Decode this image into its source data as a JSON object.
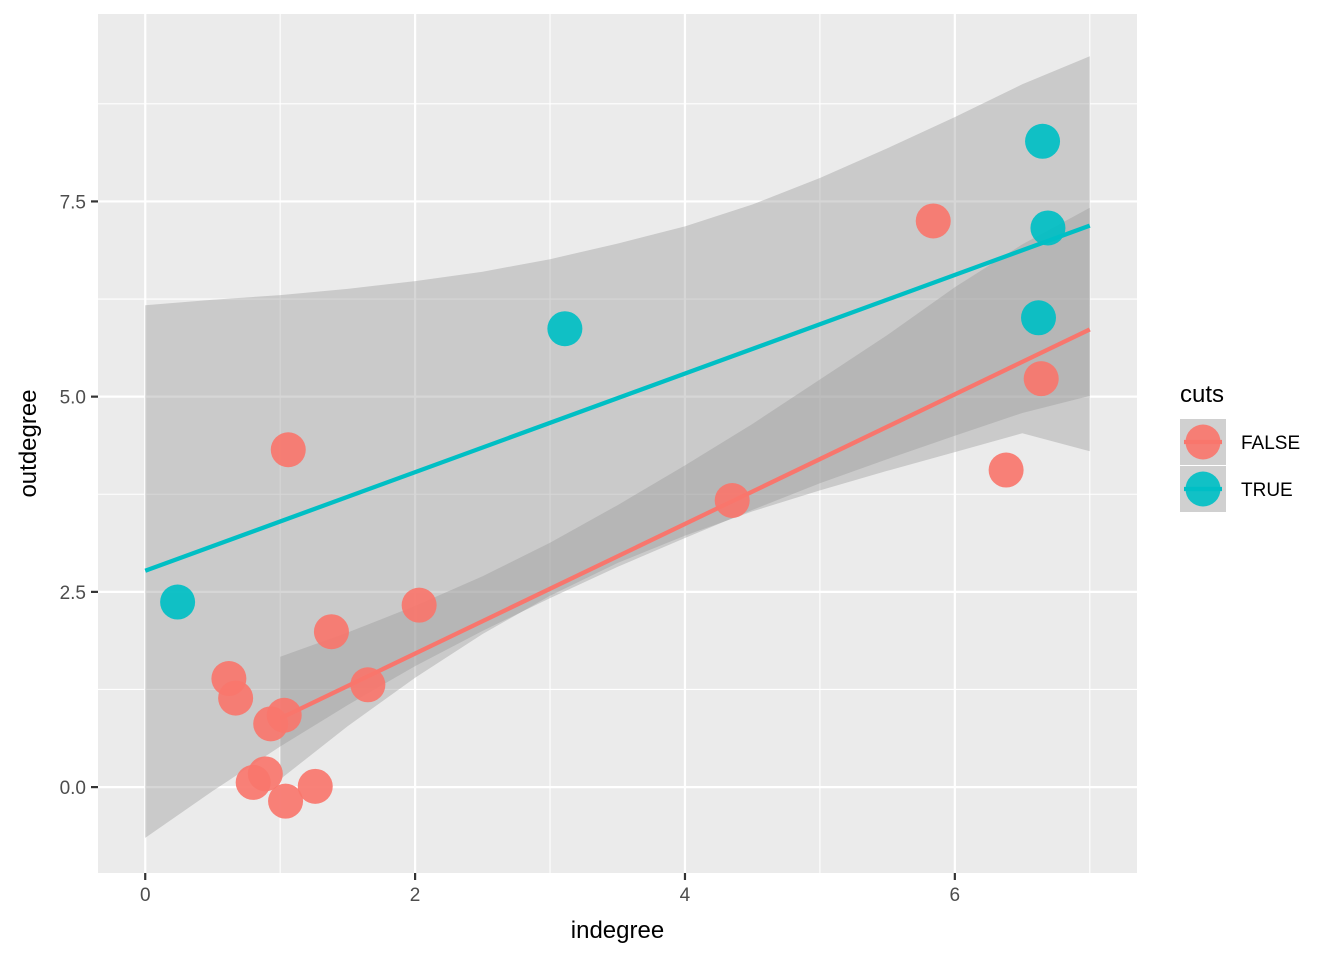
{
  "chart_data": {
    "type": "scatter",
    "xlabel": "indegree",
    "ylabel": "outdegree",
    "xlim": [
      -0.35,
      7.35
    ],
    "ylim": [
      -1.1,
      9.9
    ],
    "x_ticks": [
      {
        "value": 0,
        "label": "0"
      },
      {
        "value": 2,
        "label": "2"
      },
      {
        "value": 4,
        "label": "4"
      },
      {
        "value": 6,
        "label": "6"
      }
    ],
    "y_ticks": [
      {
        "value": 0,
        "label": "0.0"
      },
      {
        "value": 2.5,
        "label": "2.5"
      },
      {
        "value": 5,
        "label": "5.0"
      },
      {
        "value": 7.5,
        "label": "7.5"
      }
    ],
    "grid": true,
    "legend": {
      "title": "cuts",
      "placement": "right",
      "entries": [
        "FALSE",
        "TRUE"
      ]
    },
    "series": [
      {
        "name": "FALSE",
        "color": "#F8766D",
        "points": [
          {
            "x": 0.62,
            "y": 1.39
          },
          {
            "x": 0.67,
            "y": 1.14
          },
          {
            "x": 0.93,
            "y": 0.81
          },
          {
            "x": 1.03,
            "y": 0.92
          },
          {
            "x": 1.06,
            "y": 4.32
          },
          {
            "x": 1.38,
            "y": 1.99
          },
          {
            "x": 1.65,
            "y": 1.31
          },
          {
            "x": 2.03,
            "y": 2.33
          },
          {
            "x": 0.89,
            "y": 0.17
          },
          {
            "x": 0.8,
            "y": 0.06
          },
          {
            "x": 1.04,
            "y": -0.18
          },
          {
            "x": 1.26,
            "y": 0.01
          },
          {
            "x": 4.35,
            "y": 3.67
          },
          {
            "x": 5.84,
            "y": 7.25
          },
          {
            "x": 6.38,
            "y": 4.06
          },
          {
            "x": 6.64,
            "y": 5.23
          }
        ],
        "fit": {
          "x": [
            1.0,
            7.0
          ],
          "y": [
            0.88,
            5.86
          ]
        },
        "band": {
          "x": [
            1.0,
            1.5,
            2.0,
            2.5,
            3.0,
            3.5,
            4.0,
            4.5,
            5.0,
            5.5,
            6.0,
            6.5,
            7.0
          ],
          "lower": [
            0.1,
            0.78,
            1.4,
            1.96,
            2.45,
            2.87,
            3.22,
            3.53,
            3.8,
            4.05,
            4.29,
            4.53,
            4.3
          ],
          "upper": [
            1.67,
            1.98,
            2.32,
            2.7,
            3.13,
            3.61,
            4.12,
            4.65,
            5.22,
            5.79,
            6.4,
            6.95,
            7.42
          ]
        }
      },
      {
        "name": "TRUE",
        "color": "#00BFC4",
        "points": [
          {
            "x": 0.24,
            "y": 2.37
          },
          {
            "x": 3.11,
            "y": 5.87
          },
          {
            "x": 6.62,
            "y": 6.01
          },
          {
            "x": 6.65,
            "y": 8.27
          },
          {
            "x": 6.69,
            "y": 7.16
          }
        ],
        "fit": {
          "x": [
            0.0,
            7.0
          ],
          "y": [
            2.77,
            7.19
          ]
        },
        "band": {
          "x": [
            0.0,
            0.5,
            1.0,
            1.5,
            2.0,
            2.5,
            3.0,
            3.5,
            4.0,
            4.5,
            5.0,
            5.5,
            6.0,
            6.5,
            7.0
          ],
          "lower": [
            -0.65,
            -0.05,
            0.52,
            1.05,
            1.55,
            2.0,
            2.42,
            2.82,
            3.19,
            3.55,
            3.89,
            4.2,
            4.5,
            4.79,
            5.01
          ],
          "upper": [
            6.17,
            6.24,
            6.3,
            6.38,
            6.48,
            6.6,
            6.76,
            6.96,
            7.18,
            7.46,
            7.8,
            8.18,
            8.58,
            9.0,
            9.36
          ]
        }
      }
    ]
  }
}
